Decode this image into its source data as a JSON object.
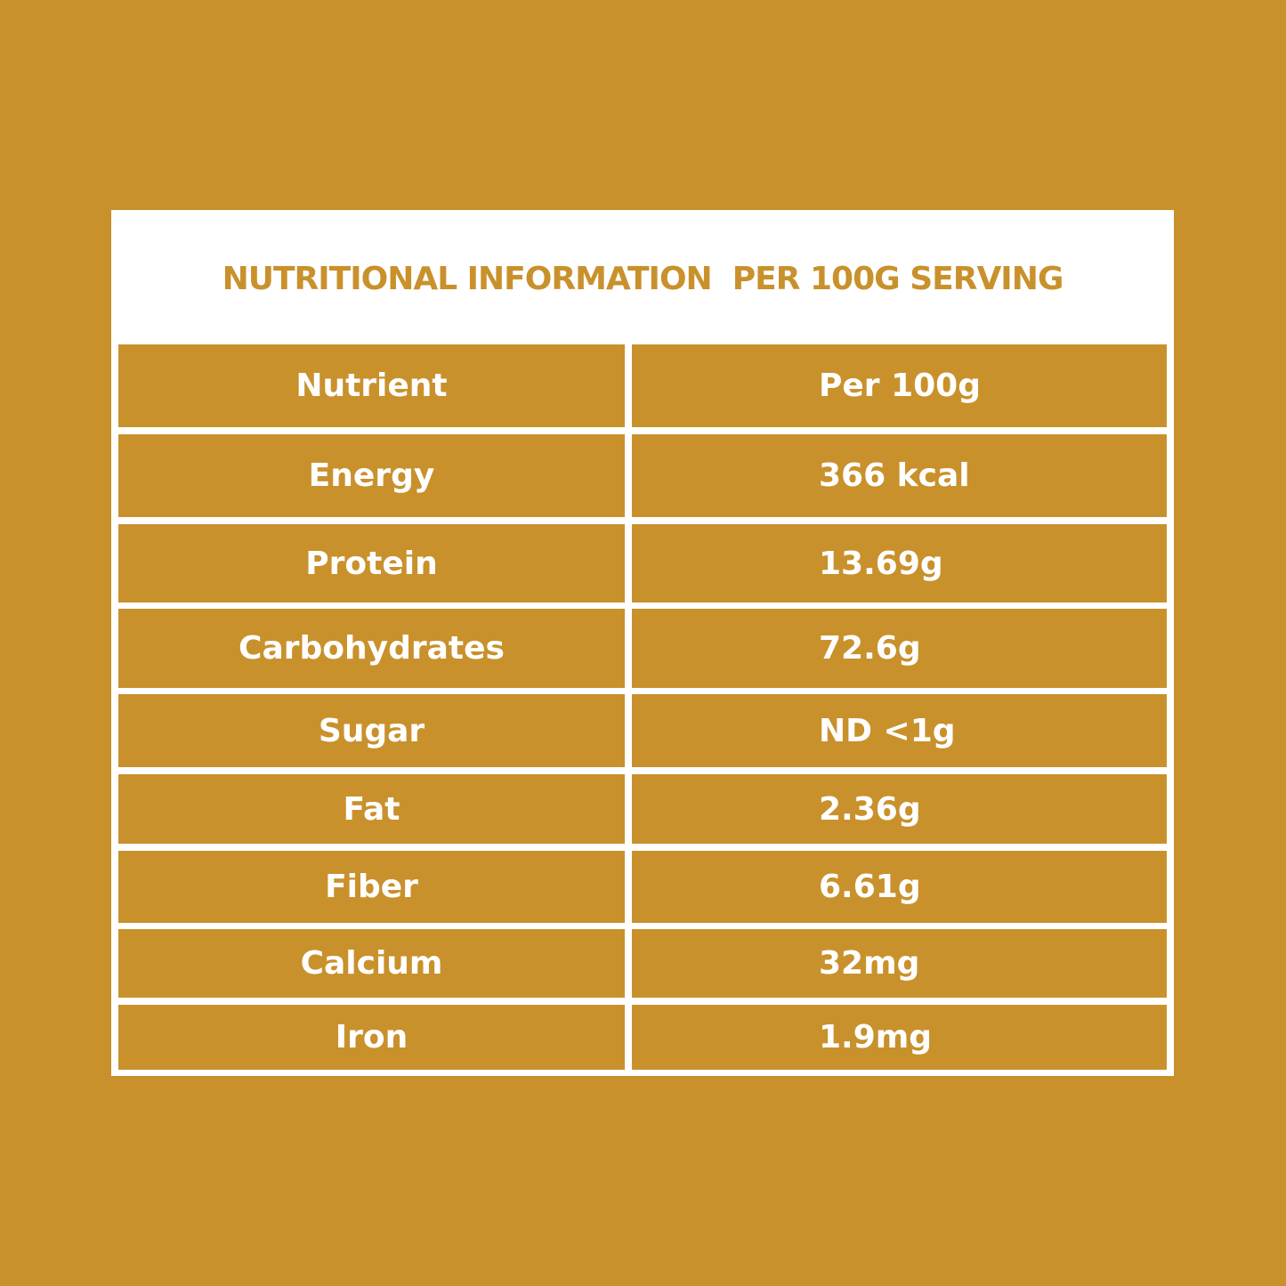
{
  "title": "NUTRITIONAL INFORMATION  PER 100G SERVING",
  "table": {
    "header": [
      "Nutrient",
      "Per 100g"
    ],
    "rows": [
      [
        "Energy",
        "366 kcal"
      ],
      [
        "Protein",
        "13.69g"
      ],
      [
        "Carbohydrates",
        "72.6g"
      ],
      [
        "Sugar",
        "ND <1g"
      ],
      [
        "Fat",
        "2.36g"
      ],
      [
        "Fiber",
        "6.61g"
      ],
      [
        "Calcium",
        "32mg"
      ],
      [
        "Iron",
        "1.9mg"
      ]
    ]
  }
}
